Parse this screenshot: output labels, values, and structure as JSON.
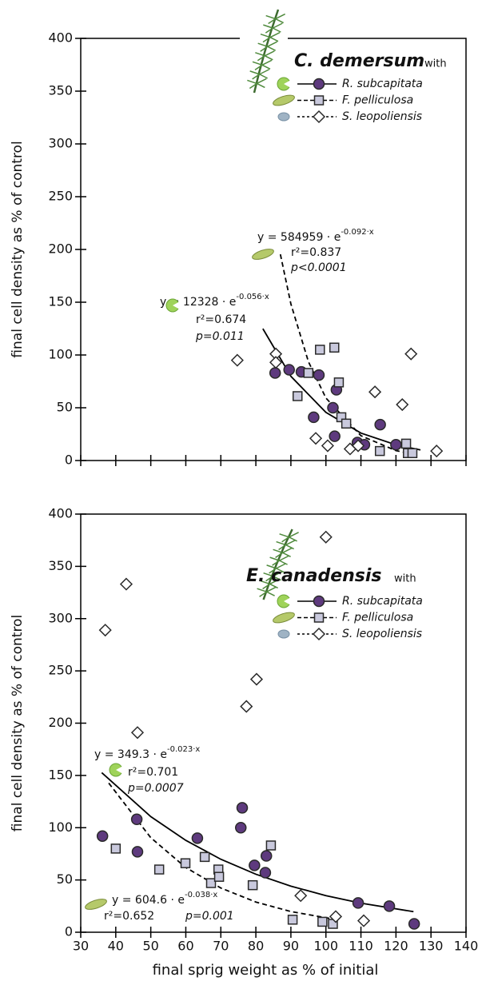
{
  "chart_data": [
    {
      "type": "scatter",
      "title": "C. demersum",
      "title_suffix": "with",
      "ylabel": "final cell density as % of control",
      "xlim": [
        30,
        140
      ],
      "xticks": [
        30,
        40,
        50,
        60,
        70,
        80,
        90,
        100,
        110,
        120,
        130,
        140
      ],
      "ylim": [
        0,
        400
      ],
      "yticks": [
        0,
        50,
        100,
        150,
        200,
        250,
        300,
        350,
        400
      ],
      "series": [
        {
          "name": "R. subcapitata",
          "color": "#5e3a7e",
          "marker": "circle",
          "x": [
            85.5,
            89.5,
            93,
            98,
            96.5,
            102,
            103,
            102.5,
            109,
            111,
            115.5,
            120
          ],
          "values": [
            83,
            86,
            84,
            81,
            41,
            50,
            67,
            23,
            17,
            15,
            34,
            15
          ]
        },
        {
          "name": "F. pelliculosa",
          "color": "#c9c9dd",
          "marker": "square",
          "x": [
            91.9,
            95,
            98.3,
            102.4,
            103.7,
            104.4,
            105.8,
            115.4,
            122.9,
            123.4,
            124.7
          ],
          "values": [
            61,
            83,
            105,
            107,
            74,
            41,
            35,
            9,
            16,
            7,
            7
          ]
        },
        {
          "name": "S. leopoliensis",
          "color": "#ffffff",
          "marker": "diamond",
          "x": [
            74.7,
            85.7,
            85.7,
            97.1,
            100.5,
            106.9,
            109.2,
            114,
            121.8,
            124.3,
            131.6
          ],
          "values": [
            95,
            101,
            93,
            21,
            14,
            11,
            14,
            65,
            53,
            101,
            9
          ]
        }
      ],
      "fits": [
        {
          "series": 0,
          "dash": false,
          "x": [
            82,
            90,
            100,
            110,
            120,
            127
          ],
          "values": [
            124.9,
            79.8,
            45.6,
            26.0,
            14.9,
            10.0
          ],
          "equation": "y = 12328 · e",
          "exponent": "-0.056·x",
          "r2": "r²=0.674",
          "p": "p=0.011"
        },
        {
          "series": 1,
          "dash": true,
          "x": [
            87,
            90,
            95,
            100,
            110,
            120,
            125
          ],
          "values": [
            195.4,
            148.4,
            93.7,
            59.2,
            23.5,
            9.4,
            5.9
          ],
          "equation": "y = 584959 · e",
          "exponent": "-0.092·x",
          "r2": "r²=0.837",
          "p": "p<0.0001"
        }
      ]
    },
    {
      "type": "scatter",
      "title": "E. canadensis",
      "title_suffix": "with",
      "ylabel": "final cell density as % of control",
      "xlabel": "final sprig weight as % of initial",
      "xlim": [
        30,
        140
      ],
      "xticks": [
        30,
        40,
        50,
        60,
        70,
        80,
        90,
        100,
        110,
        120,
        130,
        140
      ],
      "ylim": [
        0,
        400
      ],
      "yticks": [
        0,
        50,
        100,
        150,
        200,
        250,
        300,
        350,
        400
      ],
      "series": [
        {
          "name": "R. subcapitata",
          "color": "#5e3a7e",
          "marker": "circle",
          "x": [
            36.2,
            46,
            46.2,
            63.3,
            75.7,
            76.1,
            79.6,
            83,
            82.7,
            109.2,
            118.1,
            125.2
          ],
          "values": [
            92,
            108,
            77,
            90,
            100,
            119,
            64,
            73,
            57,
            28,
            25,
            8
          ]
        },
        {
          "name": "F. pelliculosa",
          "color": "#c9c9dd",
          "marker": "square",
          "x": [
            40,
            52.4,
            59.9,
            65.4,
            67.2,
            69.3,
            69.5,
            79.1,
            84.3,
            90.5,
            99,
            102
          ],
          "values": [
            80,
            60,
            66,
            72,
            47,
            60,
            53,
            45,
            83,
            12,
            10,
            8
          ]
        },
        {
          "name": "S. leopoliensis",
          "color": "#ffffff",
          "marker": "diamond",
          "x": [
            37,
            43,
            46.2,
            77.3,
            80.2,
            92.8,
            100,
            102.8,
            110.8
          ],
          "values": [
            289,
            333,
            191,
            216,
            242,
            35,
            378,
            15,
            11
          ]
        }
      ],
      "fits": [
        {
          "series": 0,
          "dash": false,
          "x": [
            36,
            50,
            60,
            70,
            80,
            90,
            100,
            110,
            125
          ],
          "values": [
            152.6,
            110.6,
            87.9,
            69.8,
            55.5,
            44.1,
            35.0,
            27.8,
            19.7
          ],
          "equation": "y = 349.3 · e",
          "exponent": "-0.023·x",
          "r2": "r²=0.701",
          "p": "p=0.0007"
        },
        {
          "series": 1,
          "dash": true,
          "x": [
            38,
            50,
            60,
            70,
            80,
            90,
            103
          ],
          "values": [
            142.7,
            90.4,
            61.9,
            42.3,
            28.9,
            19.8,
            12.1
          ],
          "equation": "y = 604.6 · e",
          "exponent": "-0.038·x",
          "r2": "r²=0.652",
          "p": "p=0.001"
        }
      ]
    }
  ]
}
